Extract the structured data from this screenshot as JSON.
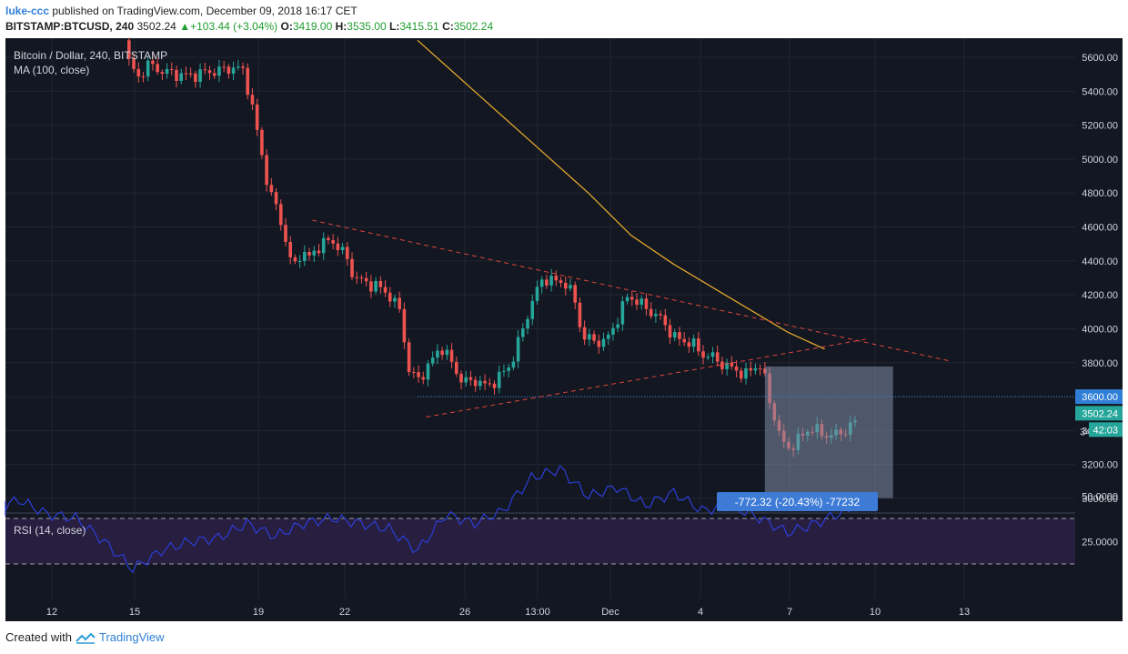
{
  "header": {
    "user": "luke-ccc",
    "published": "published on TradingView.com, December 09, 2018 16:17 CET",
    "symbol": "BITSTAMP:BTCUSD, 240",
    "last": "3502.24",
    "change": "+103.44 (+3.04%)",
    "o_label": "O:",
    "o_value": "3419.00",
    "h_label": "H:",
    "h_value": "3535.00",
    "l_label": "L:",
    "l_value": "3415.51",
    "c_label": "C:",
    "c_value": "3502.24"
  },
  "legend": {
    "line1": "Bitcoin / Dollar, 240, BITSTAMP",
    "line2": "MA (100, close)"
  },
  "rsi_legend": "RSI (14, close)",
  "measure_label": "-772.32 (-20.43%) -77232",
  "price_tags": {
    "level": "3600.00",
    "last": "3502.24",
    "timer": "42:03",
    "hidden": "34"
  },
  "footer": {
    "created": "Created with",
    "brand": "TradingView"
  },
  "colors": {
    "bg": "#131722",
    "up": "#26a69a",
    "down": "#ef5350",
    "ma": "#e3a82b",
    "trend": "#e0443e",
    "rsi": "#2c3ed8",
    "rsi_band": "#2a1f44",
    "measure": "#7f8ea6",
    "label": "#3d7bd6"
  },
  "chart_data": [
    {
      "type": "candlestick",
      "title": "Bitcoin / Dollar, 240, BITSTAMP",
      "x_tick_labels": [
        "12",
        "15",
        "19",
        "22",
        "26",
        "13:00",
        "Dec",
        "4",
        "7",
        "10",
        "13"
      ],
      "y_ticks": [
        3000,
        3200,
        3400,
        3600,
        3800,
        4000,
        4200,
        4400,
        4600,
        4800,
        5000,
        5200,
        5400,
        5600
      ],
      "y_tick_labels": [
        "3000.00",
        "3200.00",
        "3400.00",
        "3600.00",
        "3800.00",
        "4000.00",
        "4200.00",
        "4400.00",
        "4600.00",
        "4800.00",
        "5000.00",
        "5200.00",
        "5400.00",
        "5600.00"
      ],
      "ylim": [
        2900,
        5700
      ],
      "close_path": [
        [
          14.7,
          5700
        ],
        [
          14.9,
          5550
        ],
        [
          15.2,
          5480
        ],
        [
          15.5,
          5560
        ],
        [
          16,
          5520
        ],
        [
          16.5,
          5500
        ],
        [
          17,
          5490
        ],
        [
          17.5,
          5510
        ],
        [
          18,
          5520
        ],
        [
          18.5,
          5540
        ],
        [
          18.9,
          5520
        ],
        [
          19.2,
          5300
        ],
        [
          19.5,
          5050
        ],
        [
          19.8,
          4800
        ],
        [
          20.1,
          4700
        ],
        [
          20.4,
          4500
        ],
        [
          20.6,
          4350
        ],
        [
          20.9,
          4450
        ],
        [
          21.2,
          4420
        ],
        [
          21.6,
          4500
        ],
        [
          22,
          4520
        ],
        [
          22.4,
          4450
        ],
        [
          22.8,
          4300
        ],
        [
          23.2,
          4270
        ],
        [
          23.6,
          4250
        ],
        [
          24,
          4200
        ],
        [
          24.4,
          4100
        ],
        [
          24.7,
          3750
        ],
        [
          25,
          3700
        ],
        [
          25.4,
          3780
        ],
        [
          25.8,
          3900
        ],
        [
          26.2,
          3800
        ],
        [
          26.6,
          3680
        ],
        [
          27,
          3700
        ],
        [
          27.4,
          3660
        ],
        [
          27.8,
          3700
        ],
        [
          28.3,
          3800
        ],
        [
          28.6,
          3950
        ],
        [
          29,
          4150
        ],
        [
          29.4,
          4300
        ],
        [
          29.8,
          4280
        ],
        [
          30.2,
          4270
        ],
        [
          30.5,
          4180
        ],
        [
          30.8,
          3950
        ],
        [
          31.2,
          3930
        ],
        [
          31.6,
          3920
        ],
        [
          32,
          4050
        ],
        [
          32.4,
          4200
        ],
        [
          32.8,
          4150
        ],
        [
          33.2,
          4100
        ],
        [
          33.6,
          4050
        ],
        [
          34,
          3950
        ],
        [
          34.3,
          3930
        ],
        [
          34.6,
          3920
        ],
        [
          35,
          3850
        ],
        [
          35.4,
          3830
        ],
        [
          35.8,
          3780
        ],
        [
          36.2,
          3760
        ],
        [
          36.5,
          3720
        ],
        [
          36.8,
          3780
        ],
        [
          37.1,
          3780
        ],
        [
          37.35,
          3580
        ],
        [
          37.6,
          3450
        ],
        [
          37.8,
          3320
        ],
        [
          38.1,
          3300
        ],
        [
          38.4,
          3350
        ],
        [
          38.8,
          3420
        ],
        [
          39.2,
          3380
        ],
        [
          39.6,
          3370
        ],
        [
          40,
          3400
        ],
        [
          40.3,
          3430
        ],
        [
          40.5,
          3502.24
        ]
      ],
      "ma_100": [
        [
          25,
          5700
        ],
        [
          27,
          5400
        ],
        [
          29,
          5100
        ],
        [
          31,
          4800
        ],
        [
          32.5,
          4550
        ],
        [
          34,
          4380
        ],
        [
          36,
          4180
        ],
        [
          38,
          3980
        ],
        [
          39.3,
          3880
        ]
      ],
      "trendlines": [
        {
          "from": [
            21.3,
            4640
          ],
          "to": [
            43.7,
            3810
          ]
        },
        {
          "from": [
            25.3,
            3480
          ],
          "to": [
            40.8,
            3940
          ]
        }
      ],
      "horizontal_line": 3600,
      "measure_box": {
        "x_range": [
          37.2,
          41.7
        ],
        "y_range": [
          3002,
          3778
        ],
        "change": -772.32,
        "change_pct": -20.43
      },
      "last_price": 3502.24
    },
    {
      "type": "line",
      "title": "RSI (14, close)",
      "y_tick_labels": [
        "25.0000",
        "50.0000"
      ],
      "y_ticks": [
        25,
        50
      ],
      "ylim": [
        0,
        80
      ],
      "bands": [
        30,
        70
      ],
      "x": [
        9,
        10,
        11,
        12,
        13,
        14,
        15,
        16,
        17,
        18,
        19,
        20,
        21,
        22,
        23,
        24,
        25,
        26,
        27,
        28,
        29,
        30,
        31,
        32,
        33,
        34,
        35,
        36,
        37,
        38,
        39,
        40,
        40.5
      ],
      "values": [
        45,
        42,
        48,
        40,
        38,
        25,
        10,
        20,
        25,
        27,
        35,
        28,
        35,
        38,
        35,
        32,
        20,
        40,
        35,
        42,
        60,
        65,
        50,
        55,
        45,
        52,
        42,
        45,
        38,
        30,
        35,
        42,
        48
      ]
    }
  ]
}
